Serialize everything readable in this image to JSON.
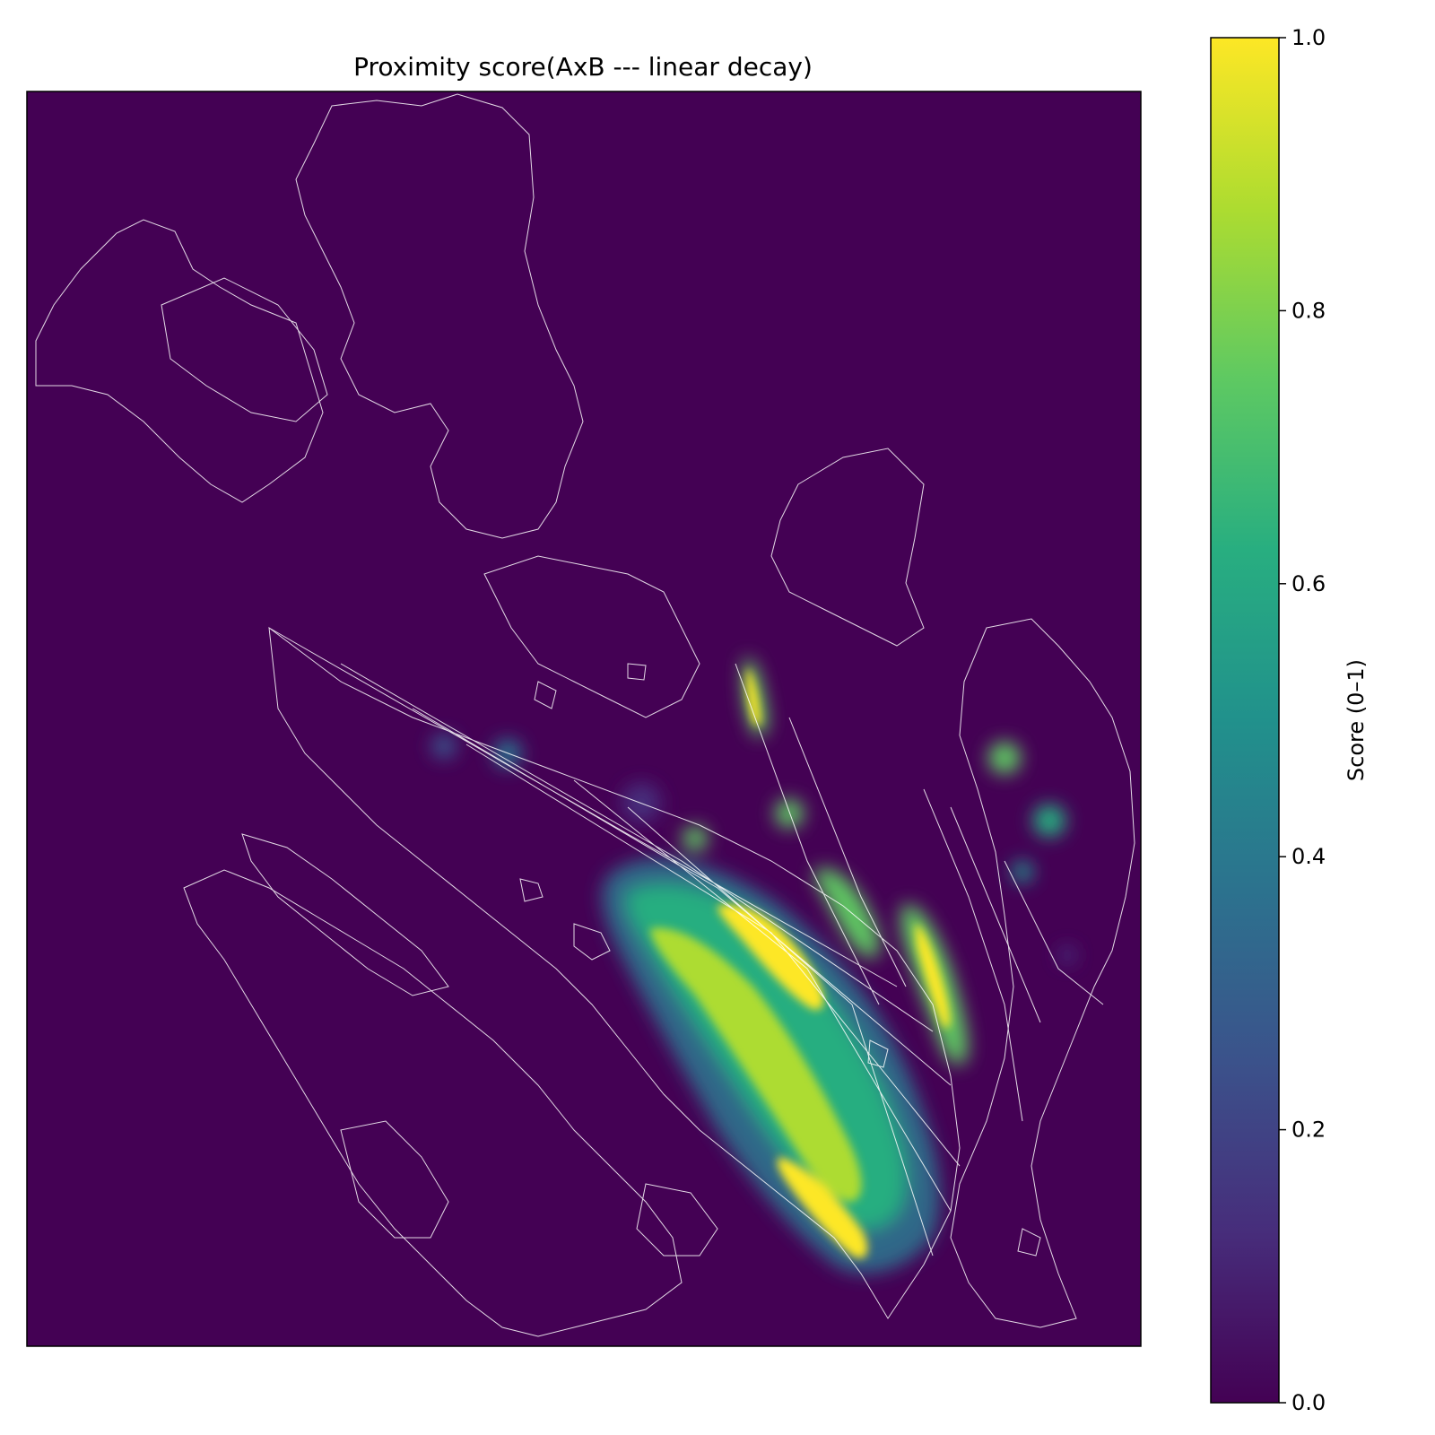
{
  "chart_data": {
    "type": "heatmap",
    "title": "Proximity score(AxB --- linear decay)",
    "xlabel": "",
    "ylabel": "",
    "axes_ticks_visible": false,
    "colormap": "viridis",
    "background_value": 0.0,
    "overlay": {
      "description": "white geological contact polygon outlines",
      "color": "#ffffff"
    },
    "colorbar": {
      "label": "Score (0–1)",
      "range": [
        0.0,
        1.0
      ],
      "ticks": [
        0.0,
        0.2,
        0.4,
        0.6,
        0.8,
        1.0
      ],
      "tick_labels": [
        "0.0",
        "0.2",
        "0.4",
        "0.6",
        "0.8",
        "1.0"
      ],
      "position": "right"
    },
    "high_score_zone": "elongated NW–SE belt of high values in the south-central part of the map"
  },
  "colors": {
    "viridis_0": "#440154",
    "viridis_025": "#3b528b",
    "viridis_05": "#21918c",
    "viridis_075": "#5ec962",
    "viridis_1": "#fde725",
    "overlay": "#ffffff"
  }
}
